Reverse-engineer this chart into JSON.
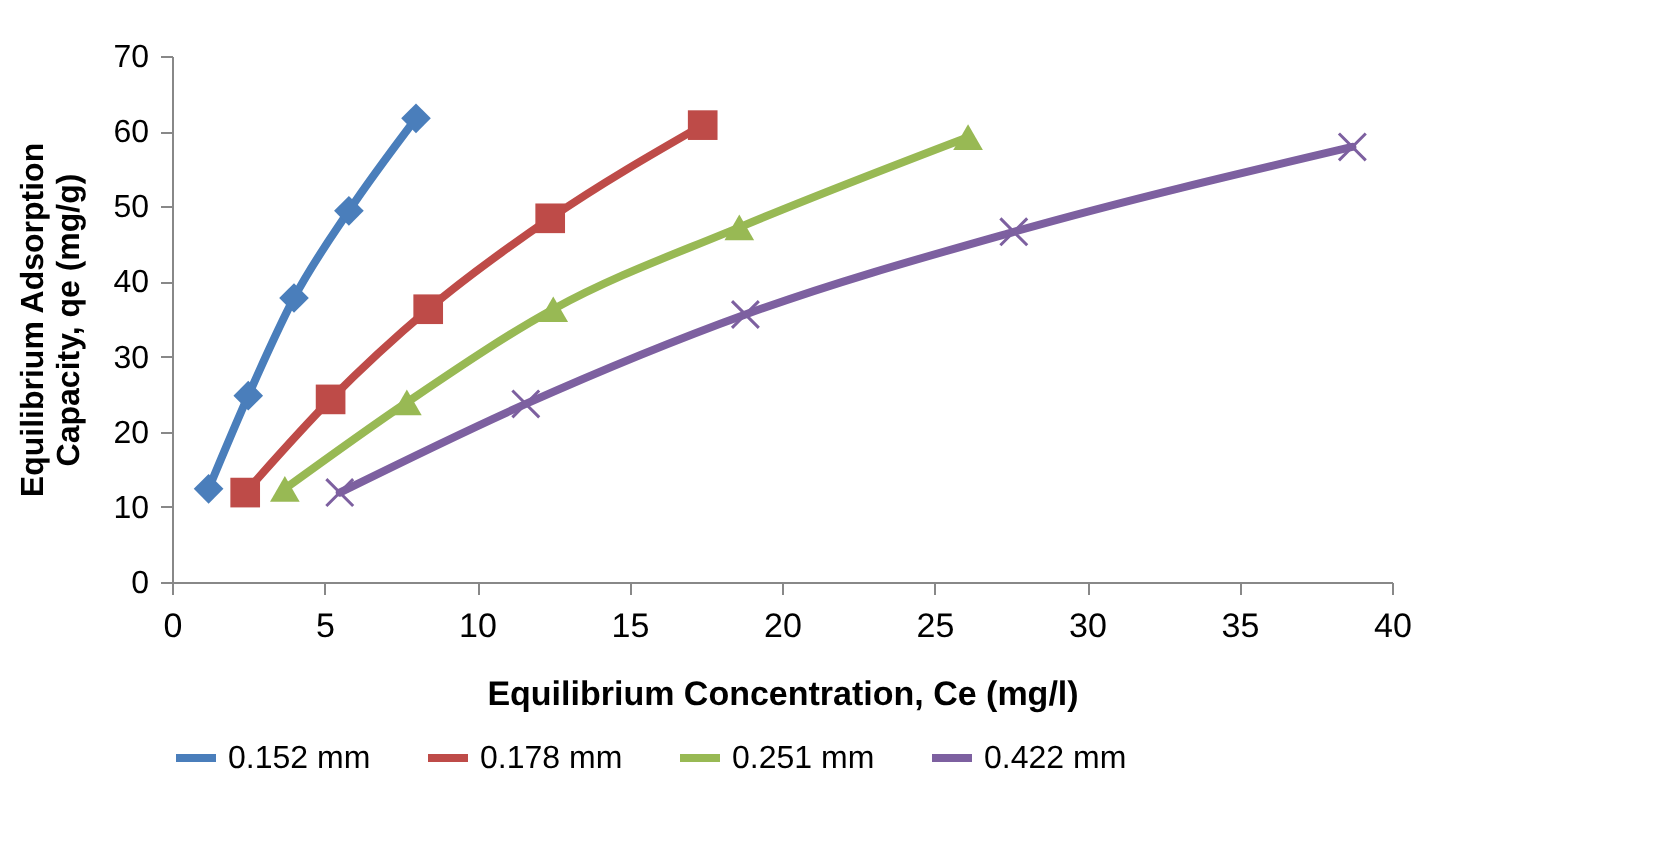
{
  "chart_data": {
    "type": "line",
    "xlabel": "Equilibrium Concentration, Ce (mg/l)",
    "ylabel": "Equilibrium Adsorption Capacity, qe (mg/g)",
    "xlim": [
      0,
      40
    ],
    "xticks": [
      0,
      5,
      10,
      15,
      20,
      25,
      30,
      35,
      40
    ],
    "ylim": [
      0,
      70
    ],
    "yticks": [
      0,
      10,
      20,
      30,
      40,
      50,
      60,
      70
    ],
    "grid": false,
    "legend": "bottom",
    "series": [
      {
        "name": "0.152 mm",
        "color": "#4a7ebb",
        "marker": "diamond",
        "x": [
          1.2,
          2.5,
          4.0,
          5.8,
          8.0
        ],
        "values": [
          12.4,
          24.8,
          37.8,
          49.4,
          61.7
        ]
      },
      {
        "name": "0.178 mm",
        "color": "#be4b48",
        "marker": "square",
        "x": [
          2.4,
          5.2,
          8.4,
          12.4,
          17.4
        ],
        "values": [
          11.9,
          24.3,
          36.3,
          48.4,
          60.8
        ]
      },
      {
        "name": "0.251 mm",
        "color": "#98b954",
        "marker": "triangle",
        "x": [
          3.7,
          7.7,
          12.5,
          18.6,
          26.1
        ],
        "values": [
          12.4,
          23.9,
          36.3,
          47.2,
          59.2
        ]
      },
      {
        "name": "0.422 mm",
        "color": "#7d60a0",
        "marker": "cross",
        "x": [
          5.5,
          11.6,
          18.8,
          27.6,
          38.7
        ],
        "values": [
          11.9,
          23.7,
          35.6,
          46.6,
          57.9
        ]
      }
    ]
  }
}
